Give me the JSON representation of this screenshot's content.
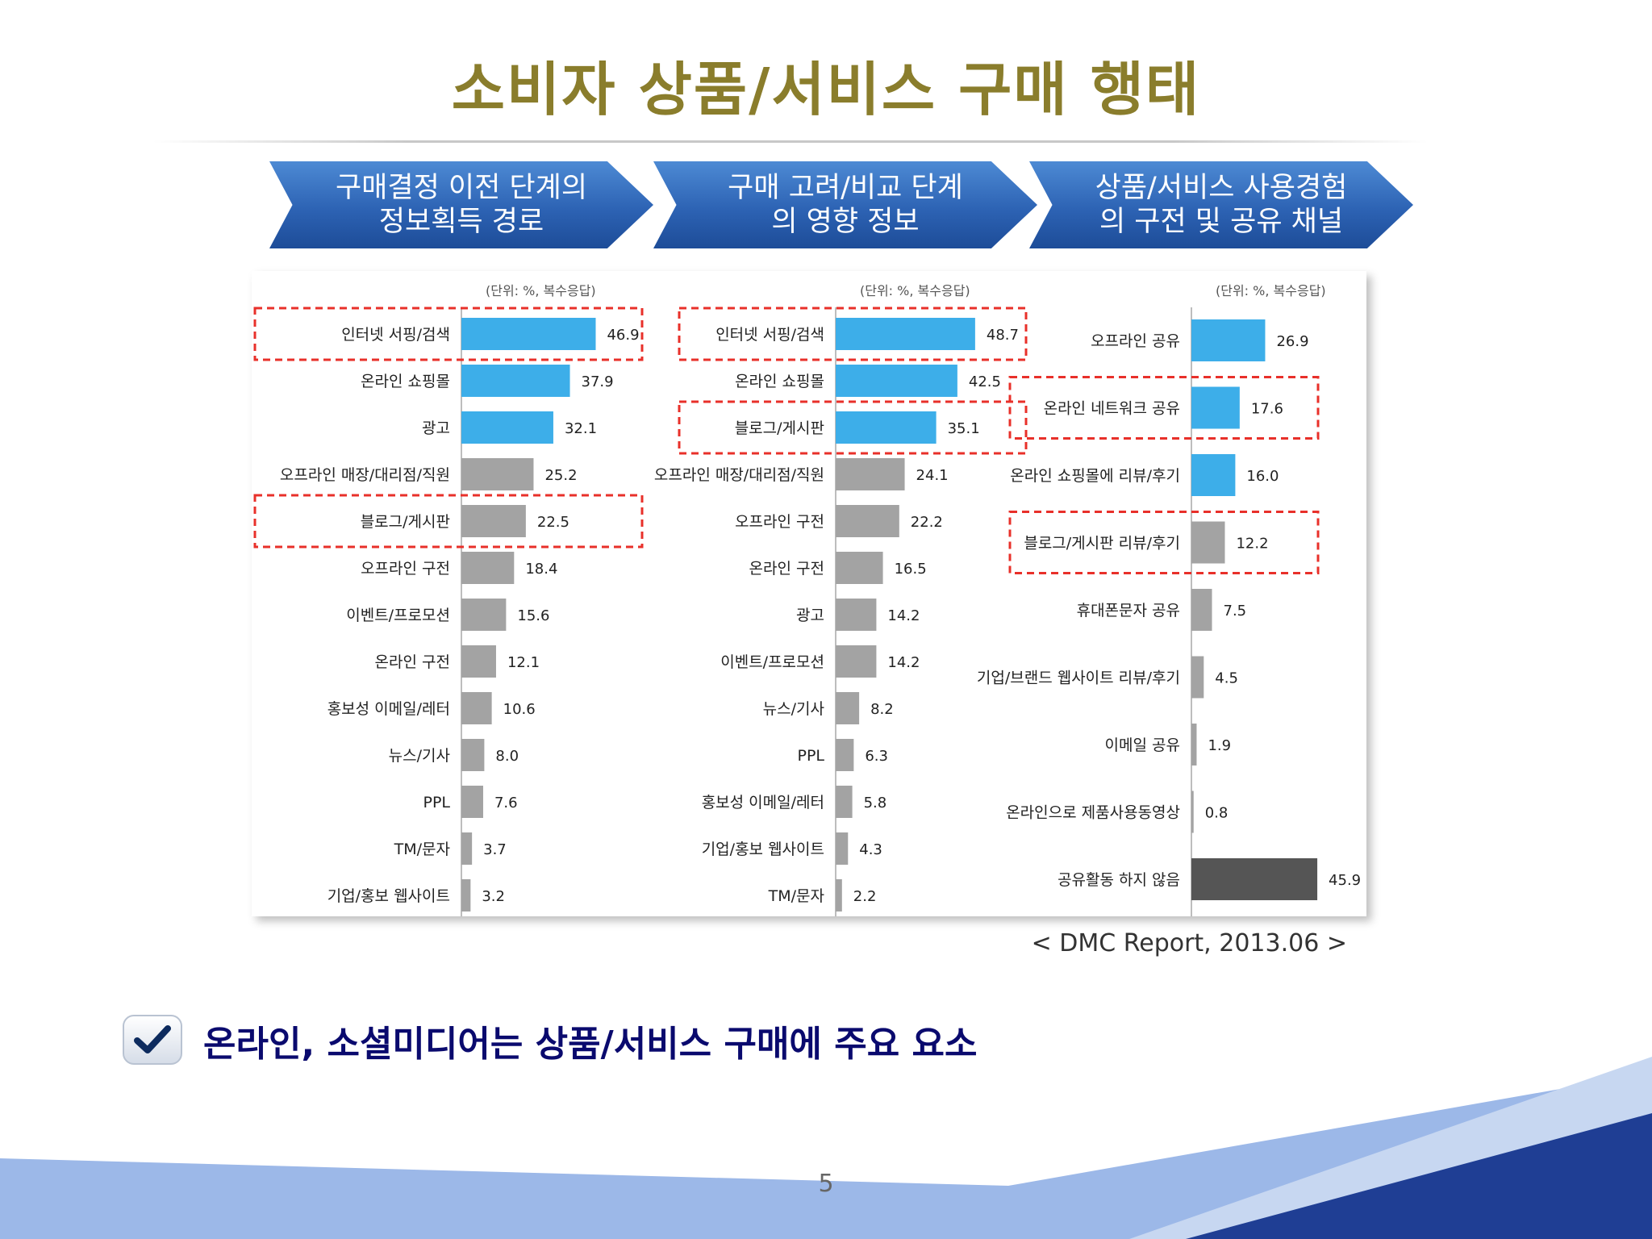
{
  "title": "소비자 상품/서비스 구매 행태",
  "steps": [
    {
      "label": "구매결정 이전 단계의\n정보획득 경로"
    },
    {
      "label": "구매 고려/비교 단계\n의 영향 정보"
    },
    {
      "label": "상품/서비스 사용경험\n의 구전 및 공유 채널"
    }
  ],
  "colors": {
    "blue": "#3daee9",
    "gray": "#a3a3a3",
    "dark": "#555555",
    "highlight": "#e8302a"
  },
  "chart_data": [
    {
      "type": "bar",
      "orientation": "horizontal",
      "unit_note": "(단위: %, 복수응답)",
      "categories": [
        "인터넷 서핑/검색",
        "온라인 쇼핑몰",
        "광고",
        "오프라인 매장/대리점/직원",
        "블로그/게시판",
        "오프라인 구전",
        "이벤트/프로모션",
        "온라인 구전",
        "홍보성 이메일/레터",
        "뉴스/기사",
        "PPL",
        "TM/문자",
        "기업/홍보 웹사이트"
      ],
      "values": [
        46.9,
        37.9,
        32.1,
        25.2,
        22.5,
        18.4,
        15.6,
        12.1,
        10.6,
        8.0,
        7.6,
        3.7,
        3.2
      ],
      "value_labels": [
        "46.9",
        "37.9",
        "32.1",
        "25.2",
        "22.5",
        "18.4",
        "15.6",
        "12.1",
        "10.6",
        "8.0",
        "7.6",
        "3.7",
        "3.2"
      ],
      "bar_colors": [
        "blue",
        "blue",
        "blue",
        "gray",
        "gray",
        "gray",
        "gray",
        "gray",
        "gray",
        "gray",
        "gray",
        "gray",
        "gray"
      ],
      "highlighted": [
        "인터넷 서핑/검색",
        "블로그/게시판"
      ],
      "xlim": [
        0,
        50
      ]
    },
    {
      "type": "bar",
      "orientation": "horizontal",
      "unit_note": "(단위: %, 복수응답)",
      "categories": [
        "인터넷 서핑/검색",
        "온라인 쇼핑몰",
        "블로그/게시판",
        "오프라인 매장/대리점/직원",
        "오프라인 구전",
        "온라인 구전",
        "광고",
        "이벤트/프로모션",
        "뉴스/기사",
        "PPL",
        "홍보성 이메일/레터",
        "기업/홍보 웹사이트",
        "TM/문자"
      ],
      "values": [
        48.7,
        42.5,
        35.1,
        24.1,
        22.2,
        16.5,
        14.2,
        14.2,
        8.2,
        6.3,
        5.8,
        4.3,
        2.2
      ],
      "value_labels": [
        "48.7",
        "42.5",
        "35.1",
        "24.1",
        "22.2",
        "16.5",
        "14.2",
        "14.2",
        "8.2",
        "6.3",
        "5.8",
        "4.3",
        "2.2"
      ],
      "bar_colors": [
        "blue",
        "blue",
        "blue",
        "gray",
        "gray",
        "gray",
        "gray",
        "gray",
        "gray",
        "gray",
        "gray",
        "gray",
        "gray"
      ],
      "highlighted": [
        "인터넷 서핑/검색",
        "블로그/게시판"
      ],
      "xlim": [
        0,
        50
      ]
    },
    {
      "type": "bar",
      "orientation": "horizontal",
      "unit_note": "(단위: %, 복수응답)",
      "categories": [
        "오프라인 공유",
        "온라인 네트워크 공유",
        "온라인 쇼핑몰에 리뷰/후기",
        "블로그/게시판 리뷰/후기",
        "휴대폰문자 공유",
        "기업/브랜드 웹사이트 리뷰/후기",
        "이메일 공유",
        "온라인으로 제품사용동영상",
        "공유활동 하지 않음"
      ],
      "values": [
        26.9,
        17.6,
        16.0,
        12.2,
        7.5,
        4.5,
        1.9,
        0.8,
        45.9
      ],
      "value_labels": [
        "26.9",
        "17.6",
        "16.0",
        "12.2",
        "7.5",
        "4.5",
        "1.9",
        "0.8",
        "45.9"
      ],
      "bar_colors": [
        "blue",
        "blue",
        "blue",
        "gray",
        "gray",
        "gray",
        "gray",
        "gray",
        "dark"
      ],
      "highlighted": [
        "온라인 네트워크 공유",
        "블로그/게시판 리뷰/후기"
      ],
      "xlim": [
        0,
        50
      ]
    }
  ],
  "source": "< DMC Report, 2013.06 >",
  "bullet": {
    "icon": "checkmark-icon",
    "text": "온라인, 소셜미디어는 상품/서비스 구매에 주요 요소"
  },
  "page_number": "5"
}
